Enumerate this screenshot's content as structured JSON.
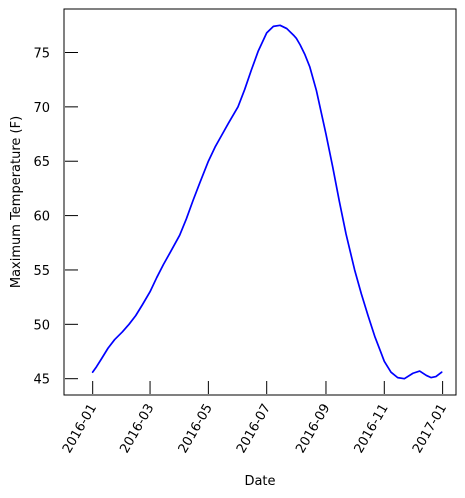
{
  "chart_data": {
    "type": "line",
    "xlabel": "Date",
    "ylabel": "Maximum Temperature (F)",
    "xlim": [
      "2015-12-02",
      "2017-01-15"
    ],
    "ylim": [
      43.5,
      79.0
    ],
    "x_ticks": [
      "2016-01-01",
      "2016-03-01",
      "2016-05-01",
      "2016-07-01",
      "2016-09-01",
      "2016-11-01",
      "2017-01-01"
    ],
    "x_tick_labels": [
      "2016-01",
      "2016-03",
      "2016-05",
      "2016-07",
      "2016-09",
      "2016-11",
      "2017-01"
    ],
    "y_ticks": [
      45,
      50,
      55,
      60,
      65,
      70,
      75
    ],
    "y_tick_labels": [
      "45",
      "50",
      "55",
      "60",
      "65",
      "70",
      "75"
    ],
    "grid": false,
    "series": [
      {
        "color": "#0000ff",
        "x": [
          "2016-01-01",
          "2016-01-05",
          "2016-01-10",
          "2016-01-17",
          "2016-01-24",
          "2016-02-01",
          "2016-02-08",
          "2016-02-15",
          "2016-02-22",
          "2016-03-01",
          "2016-03-08",
          "2016-03-15",
          "2016-03-22",
          "2016-04-01",
          "2016-04-08",
          "2016-04-15",
          "2016-04-22",
          "2016-05-01",
          "2016-05-08",
          "2016-05-15",
          "2016-05-22",
          "2016-06-01",
          "2016-06-08",
          "2016-06-15",
          "2016-06-22",
          "2016-07-01",
          "2016-07-08",
          "2016-07-15",
          "2016-07-22",
          "2016-07-29",
          "2016-08-01",
          "2016-08-05",
          "2016-08-10",
          "2016-08-15",
          "2016-08-22",
          "2016-09-01",
          "2016-09-08",
          "2016-09-15",
          "2016-09-22",
          "2016-10-01",
          "2016-10-08",
          "2016-10-15",
          "2016-10-22",
          "2016-11-01",
          "2016-11-08",
          "2016-11-15",
          "2016-11-22",
          "2016-12-01",
          "2016-12-08",
          "2016-12-15",
          "2016-12-20",
          "2016-12-25",
          "2016-12-31"
        ],
        "y": [
          45.6,
          46.1,
          46.8,
          47.8,
          48.6,
          49.3,
          50.0,
          50.8,
          51.8,
          53.0,
          54.3,
          55.5,
          56.6,
          58.2,
          59.7,
          61.4,
          63.0,
          65.0,
          66.3,
          67.4,
          68.5,
          70.0,
          71.6,
          73.4,
          75.1,
          76.8,
          77.4,
          77.5,
          77.2,
          76.6,
          76.3,
          75.7,
          74.8,
          73.7,
          71.5,
          67.5,
          64.5,
          61.3,
          58.3,
          55.0,
          52.8,
          50.8,
          48.9,
          46.6,
          45.6,
          45.1,
          45.0,
          45.5,
          45.7,
          45.3,
          45.1,
          45.2,
          45.6
        ]
      }
    ]
  }
}
